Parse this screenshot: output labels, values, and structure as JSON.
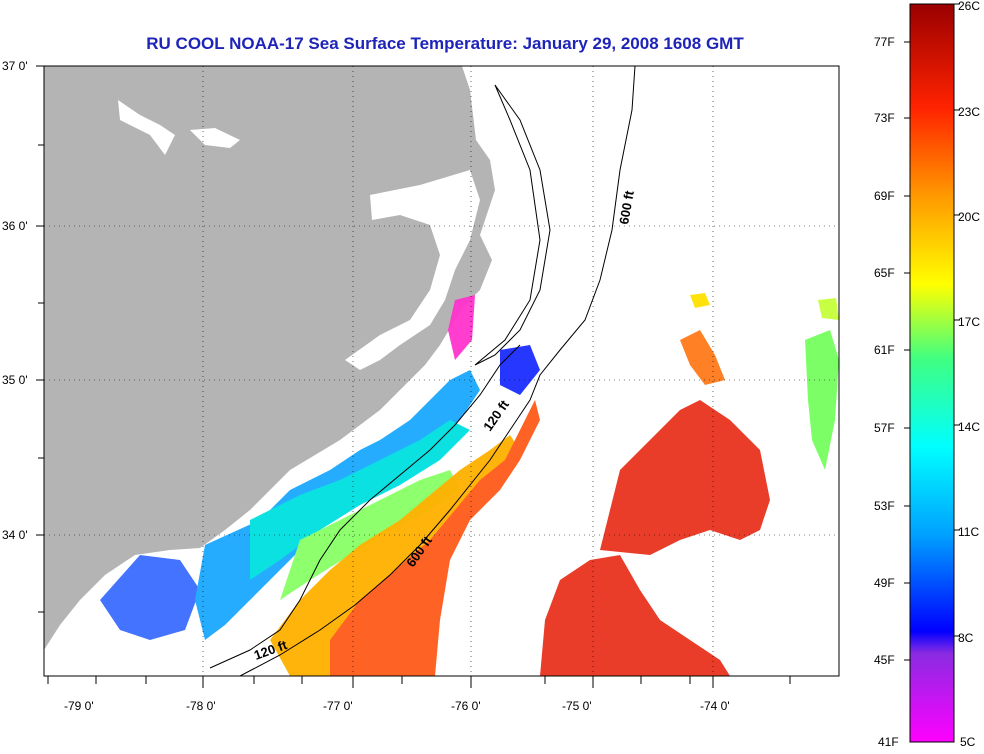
{
  "title": "RU COOL  NOAA-17  Sea Surface Temperature:  January 29, 2008 1608 GMT",
  "latitude_labels": [
    "37 0'",
    "36 0'",
    "35 0'",
    "34 0'"
  ],
  "longitude_labels": [
    "-79 0'",
    "-78 0'",
    "-77 0'",
    "-76 0'",
    "-75 0'",
    "-74 0'"
  ],
  "contour_labels": [
    "600 ft",
    "120 ft",
    "600 ft",
    "120 ft"
  ],
  "colorbar": {
    "fahrenheit_labels": [
      "77F",
      "73F",
      "69F",
      "65F",
      "61F",
      "57F",
      "53F",
      "49F",
      "45F",
      "41F"
    ],
    "celsius_labels": [
      "26C",
      "23C",
      "20C",
      "17C",
      "14C",
      "11C",
      "8C",
      "5C"
    ]
  },
  "colors": {
    "land": "#b4b4b4",
    "title": "#1f24b8",
    "warm": "#e8321e",
    "cold": "#1a2cff",
    "shelf_water": "#00c8ff"
  }
}
